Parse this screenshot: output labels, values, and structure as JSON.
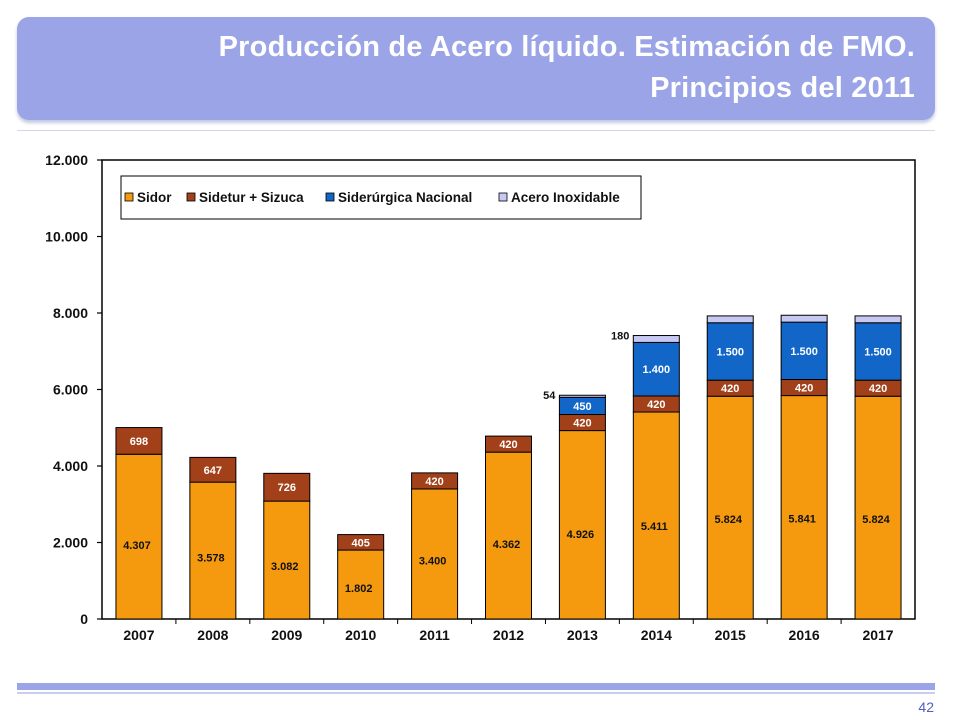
{
  "header": {
    "title_line1": "Producción de Acero líquido. Estimación de FMO.",
    "title_line2": "Principios del 2011"
  },
  "footer": {
    "page_number": "42"
  },
  "colors": {
    "banner": "#9ba4e6",
    "Sidor": "#f59a0e",
    "Sidetur + Sizuca": "#a2401a",
    "Siderúrgica Nacional": "#1266c8",
    "Acero Inoxidable": "#c7c9f2"
  },
  "chart_data": {
    "type": "bar",
    "stacked": true,
    "categories": [
      "2007",
      "2008",
      "2009",
      "2010",
      "2011",
      "2012",
      "2013",
      "2014",
      "2015",
      "2016",
      "2017"
    ],
    "series": [
      {
        "name": "Sidor",
        "values": [
          4307,
          3578,
          3082,
          1802,
          3400,
          4362,
          4926,
          5411,
          5824,
          5841,
          5824
        ],
        "labels": [
          "4.307",
          "3.578",
          "3.082",
          "1.802",
          "3.400",
          "4.362",
          "4.926",
          "5.411",
          "5.824",
          "5.841",
          "5.824"
        ]
      },
      {
        "name": "Sidetur + Sizuca",
        "values": [
          698,
          647,
          726,
          405,
          420,
          420,
          420,
          420,
          420,
          420,
          420
        ],
        "labels": [
          "698",
          "647",
          "726",
          "405",
          "420",
          "420",
          "420",
          "420",
          "420",
          "420",
          "420"
        ]
      },
      {
        "name": "Siderúrgica Nacional",
        "values": [
          0,
          0,
          0,
          0,
          0,
          0,
          450,
          1400,
          1500,
          1500,
          1500
        ],
        "labels": [
          "",
          "",
          "",
          "",
          "",
          "",
          "450",
          "1.400",
          "1.500",
          "1.500",
          "1.500"
        ]
      },
      {
        "name": "Acero Inoxidable",
        "values": [
          0,
          0,
          0,
          0,
          0,
          0,
          54,
          180,
          180,
          180,
          180
        ],
        "labels": [
          "",
          "",
          "",
          "",
          "",
          "",
          "54",
          "180",
          "",
          "",
          ""
        ]
      }
    ],
    "ylim": [
      0,
      12000
    ],
    "yticks": [
      0,
      2000,
      4000,
      6000,
      8000,
      10000,
      12000
    ],
    "ytick_labels": [
      "0",
      "2.000",
      "4.000",
      "6.000",
      "8.000",
      "10.000",
      "12.000"
    ],
    "legend_position": "top-left",
    "grid": false
  }
}
